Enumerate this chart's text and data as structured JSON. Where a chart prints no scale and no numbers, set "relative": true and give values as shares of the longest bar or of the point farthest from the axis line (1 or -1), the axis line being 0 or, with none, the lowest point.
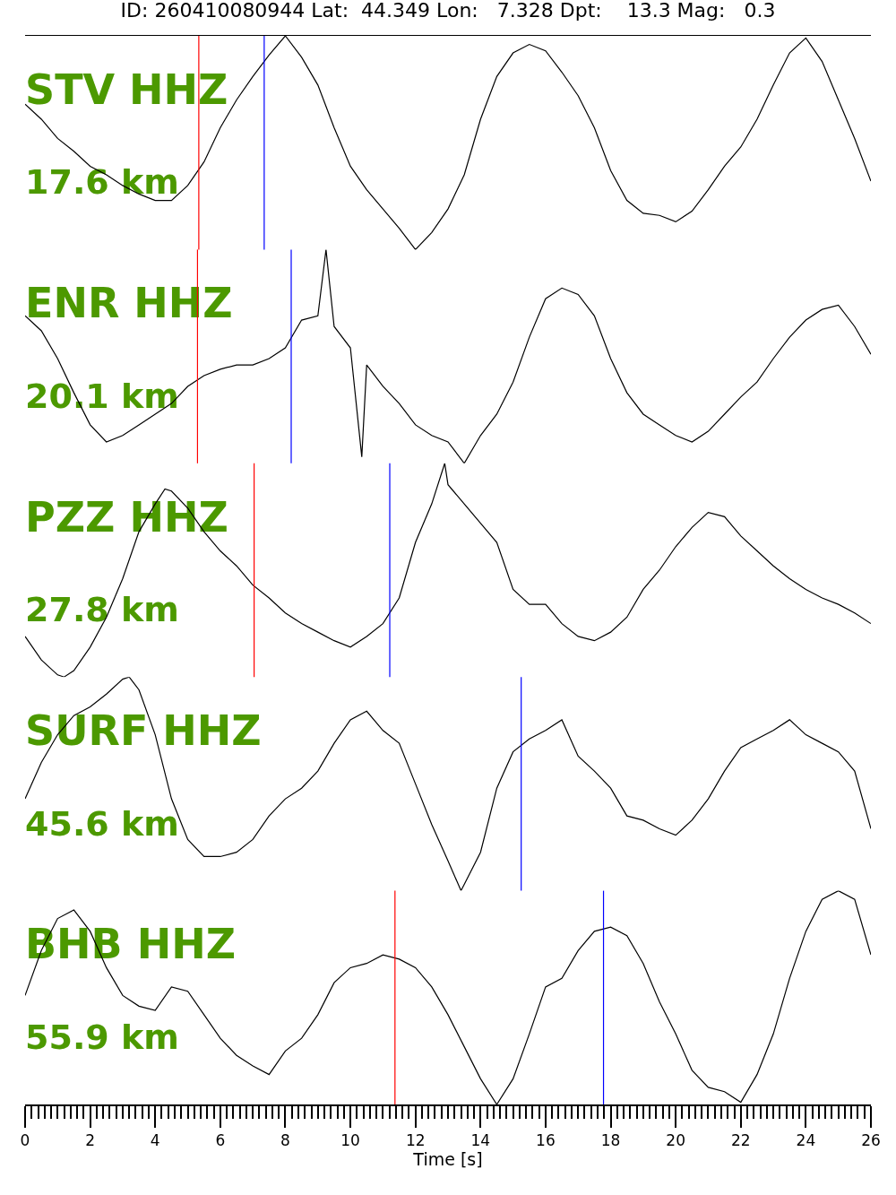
{
  "chart_data": [
    {
      "type": "line",
      "title": "ID: 260410080944 Lat:  44.349 Lon:   7.328 Dpt:    13.3 Mag:   0.3",
      "relative": true,
      "tick_labels": false,
      "xlim": [
        0,
        26
      ],
      "marker": "none",
      "line_style": "solid",
      "annotations": [
        "STV HHZ",
        "17.6 km"
      ],
      "series": [
        {
          "color": "#000000",
          "x": [
            0,
            0.5,
            1,
            1.5,
            2,
            2.5,
            3,
            3.5,
            4,
            4.5,
            5,
            5.5,
            6,
            6.5,
            7,
            7.5,
            8,
            8.5,
            9,
            9.5,
            10,
            10.5,
            11,
            11.5,
            12,
            12.5,
            13,
            13.5,
            14,
            14.5,
            15,
            15.5,
            16,
            16.5,
            17,
            17.5,
            18,
            18.5,
            19,
            19.5,
            20,
            20.5,
            21,
            21.5,
            22,
            22.5,
            23,
            23.5,
            24,
            24.5,
            25,
            25.5,
            26
          ],
          "values": [
            0.68,
            0.61,
            0.52,
            0.46,
            0.39,
            0.35,
            0.3,
            0.26,
            0.23,
            0.23,
            0.3,
            0.41,
            0.57,
            0.7,
            0.81,
            0.91,
            1.0,
            0.9,
            0.77,
            0.57,
            0.39,
            0.28,
            0.19,
            0.1,
            0.0,
            0.08,
            0.19,
            0.35,
            0.61,
            0.81,
            0.92,
            0.96,
            0.93,
            0.83,
            0.72,
            0.57,
            0.37,
            0.23,
            0.17,
            0.16,
            0.13,
            0.18,
            0.28,
            0.39,
            0.48,
            0.61,
            0.77,
            0.92,
            0.99,
            0.88,
            0.7,
            0.52,
            0.32
          ]
        }
      ],
      "ref_lines": [
        {
          "axis": "x",
          "value": 5.34,
          "color": "#ff0000"
        },
        {
          "axis": "x",
          "value": 7.35,
          "color": "#0000ff"
        }
      ]
    },
    {
      "type": "line",
      "relative": true,
      "tick_labels": false,
      "xlim": [
        0,
        26
      ],
      "marker": "none",
      "line_style": "solid",
      "annotations": [
        "ENR HHZ",
        "20.1 km"
      ],
      "series": [
        {
          "color": "#000000",
          "x": [
            0,
            0.5,
            1,
            1.5,
            2,
            2.5,
            3,
            3.5,
            4,
            4.5,
            5,
            5.5,
            6,
            6.5,
            7,
            7.5,
            8,
            8.5,
            9,
            9.25,
            9.5,
            10,
            10.35,
            10.5,
            11,
            11.5,
            12,
            12.5,
            13,
            13.5,
            14,
            14.5,
            15,
            15.5,
            16,
            16.5,
            17,
            17.5,
            18,
            18.5,
            19,
            19.5,
            20,
            20.5,
            21,
            21.5,
            22,
            22.5,
            23,
            23.5,
            24,
            24.5,
            25,
            25.5,
            26
          ],
          "values": [
            0.69,
            0.62,
            0.49,
            0.33,
            0.18,
            0.1,
            0.13,
            0.18,
            0.23,
            0.28,
            0.36,
            0.41,
            0.44,
            0.46,
            0.46,
            0.49,
            0.54,
            0.67,
            0.69,
            1.0,
            0.64,
            0.54,
            0.03,
            0.46,
            0.36,
            0.28,
            0.18,
            0.13,
            0.1,
            0.0,
            0.13,
            0.23,
            0.38,
            0.59,
            0.77,
            0.82,
            0.79,
            0.69,
            0.49,
            0.33,
            0.23,
            0.18,
            0.13,
            0.1,
            0.15,
            0.23,
            0.31,
            0.38,
            0.49,
            0.59,
            0.67,
            0.72,
            0.74,
            0.64,
            0.51
          ]
        }
      ],
      "ref_lines": [
        {
          "axis": "x",
          "value": 5.3,
          "color": "#ff0000"
        },
        {
          "axis": "x",
          "value": 8.18,
          "color": "#0000ff"
        }
      ]
    },
    {
      "type": "line",
      "relative": true,
      "tick_labels": false,
      "xlim": [
        0,
        26
      ],
      "marker": "none",
      "line_style": "solid",
      "annotations": [
        "PZZ HHZ",
        "27.8 km"
      ],
      "series": [
        {
          "color": "#000000",
          "x": [
            0,
            0.5,
            1,
            1.2,
            1.5,
            2,
            2.5,
            3,
            3.5,
            4,
            4.3,
            4.5,
            5,
            5.5,
            6,
            6.5,
            7,
            7.5,
            8,
            8.5,
            9,
            9.5,
            10,
            10.5,
            11,
            11.5,
            12,
            12.5,
            12.9,
            13,
            13.5,
            14,
            14.5,
            15,
            15.5,
            16,
            16.5,
            17,
            17.5,
            18,
            18.5,
            19,
            19.5,
            20,
            20.5,
            21,
            21.5,
            22,
            22.5,
            23,
            23.5,
            24,
            24.5,
            25,
            25.5,
            26
          ],
          "values": [
            0.19,
            0.08,
            0.01,
            0.0,
            0.03,
            0.14,
            0.28,
            0.46,
            0.68,
            0.81,
            0.88,
            0.87,
            0.79,
            0.68,
            0.59,
            0.52,
            0.43,
            0.37,
            0.3,
            0.25,
            0.21,
            0.17,
            0.14,
            0.19,
            0.25,
            0.37,
            0.63,
            0.81,
            1.0,
            0.9,
            0.81,
            0.72,
            0.63,
            0.41,
            0.34,
            0.34,
            0.25,
            0.19,
            0.17,
            0.21,
            0.28,
            0.41,
            0.5,
            0.61,
            0.7,
            0.77,
            0.75,
            0.66,
            0.59,
            0.52,
            0.46,
            0.41,
            0.37,
            0.34,
            0.3,
            0.25
          ]
        }
      ],
      "ref_lines": [
        {
          "axis": "x",
          "value": 7.04,
          "color": "#ff0000"
        },
        {
          "axis": "x",
          "value": 11.21,
          "color": "#0000ff"
        }
      ]
    },
    {
      "type": "line",
      "relative": true,
      "tick_labels": false,
      "xlim": [
        0,
        26
      ],
      "marker": "none",
      "line_style": "solid",
      "annotations": [
        "SURF HHZ",
        "45.6 km"
      ],
      "series": [
        {
          "color": "#000000",
          "x": [
            0,
            0.5,
            1,
            1.5,
            2,
            2.5,
            3,
            3.2,
            3.5,
            4,
            4.5,
            5,
            5.5,
            6,
            6.5,
            7,
            7.5,
            8,
            8.5,
            9,
            9.5,
            10,
            10.5,
            11,
            11.5,
            12,
            12.5,
            13,
            13.4,
            13.5,
            14,
            14.5,
            15,
            15.5,
            16,
            16.5,
            17,
            17.5,
            18,
            18.5,
            19,
            19.5,
            20,
            20.5,
            21,
            21.5,
            22,
            22.5,
            23,
            23.5,
            24,
            24.5,
            25,
            25.5,
            26
          ],
          "values": [
            0.43,
            0.6,
            0.73,
            0.82,
            0.86,
            0.92,
            0.99,
            1.0,
            0.94,
            0.73,
            0.43,
            0.24,
            0.16,
            0.16,
            0.18,
            0.24,
            0.35,
            0.43,
            0.48,
            0.56,
            0.69,
            0.8,
            0.84,
            0.75,
            0.69,
            0.5,
            0.31,
            0.14,
            0.0,
            0.03,
            0.18,
            0.48,
            0.65,
            0.71,
            0.75,
            0.8,
            0.63,
            0.56,
            0.48,
            0.35,
            0.33,
            0.29,
            0.26,
            0.33,
            0.43,
            0.56,
            0.67,
            0.71,
            0.75,
            0.8,
            0.73,
            0.69,
            0.65,
            0.56,
            0.29
          ]
        }
      ],
      "ref_lines": [
        {
          "axis": "x",
          "value": 15.25,
          "color": "#0000ff"
        }
      ]
    },
    {
      "type": "line",
      "relative": true,
      "tick_labels": "x",
      "xlim": [
        0,
        26
      ],
      "marker": "none",
      "line_style": "solid",
      "xlabel": "Time [s]",
      "annotations": [
        "BHB HHZ",
        "55.9 km"
      ],
      "xticks": [
        0,
        2,
        4,
        6,
        8,
        10,
        12,
        14,
        16,
        18,
        20,
        22,
        24,
        26,
        {
          "value": 0.2,
          "label": null
        },
        {
          "value": 0.4,
          "label": null
        },
        {
          "value": 0.6,
          "label": null
        },
        {
          "value": 0.8,
          "label": null
        },
        {
          "value": 1,
          "label": null
        },
        {
          "value": 1.2,
          "label": null
        },
        {
          "value": 1.4,
          "label": null
        },
        {
          "value": 1.6,
          "label": null
        },
        {
          "value": 1.8,
          "label": null
        },
        {
          "value": 2.2,
          "label": null
        },
        {
          "value": 2.4,
          "label": null
        },
        {
          "value": 2.6,
          "label": null
        },
        {
          "value": 2.8,
          "label": null
        },
        {
          "value": 3,
          "label": null
        },
        {
          "value": 3.2,
          "label": null
        },
        {
          "value": 3.4,
          "label": null
        },
        {
          "value": 3.6,
          "label": null
        },
        {
          "value": 3.8,
          "label": null
        },
        {
          "value": 4.2,
          "label": null
        },
        {
          "value": 4.4,
          "label": null
        },
        {
          "value": 4.6,
          "label": null
        },
        {
          "value": 4.8,
          "label": null
        },
        {
          "value": 5,
          "label": null
        },
        {
          "value": 5.2,
          "label": null
        },
        {
          "value": 5.4,
          "label": null
        },
        {
          "value": 5.6,
          "label": null
        },
        {
          "value": 5.8,
          "label": null
        },
        {
          "value": 6.2,
          "label": null
        },
        {
          "value": 6.4,
          "label": null
        },
        {
          "value": 6.6,
          "label": null
        },
        {
          "value": 6.8,
          "label": null
        },
        {
          "value": 7,
          "label": null
        },
        {
          "value": 7.2,
          "label": null
        },
        {
          "value": 7.4,
          "label": null
        },
        {
          "value": 7.6,
          "label": null
        },
        {
          "value": 7.8,
          "label": null
        },
        {
          "value": 8.2,
          "label": null
        },
        {
          "value": 8.4,
          "label": null
        },
        {
          "value": 8.6,
          "label": null
        },
        {
          "value": 8.8,
          "label": null
        },
        {
          "value": 9,
          "label": null
        },
        {
          "value": 9.2,
          "label": null
        },
        {
          "value": 9.4,
          "label": null
        },
        {
          "value": 9.6,
          "label": null
        },
        {
          "value": 9.8,
          "label": null
        },
        {
          "value": 10.2,
          "label": null
        },
        {
          "value": 10.4,
          "label": null
        },
        {
          "value": 10.6,
          "label": null
        },
        {
          "value": 10.8,
          "label": null
        },
        {
          "value": 11,
          "label": null
        },
        {
          "value": 11.2,
          "label": null
        },
        {
          "value": 11.4,
          "label": null
        },
        {
          "value": 11.6,
          "label": null
        },
        {
          "value": 11.8,
          "label": null
        },
        {
          "value": 12.2,
          "label": null
        },
        {
          "value": 12.4,
          "label": null
        },
        {
          "value": 12.6,
          "label": null
        },
        {
          "value": 12.8,
          "label": null
        },
        {
          "value": 13,
          "label": null
        },
        {
          "value": 13.2,
          "label": null
        },
        {
          "value": 13.4,
          "label": null
        },
        {
          "value": 13.6,
          "label": null
        },
        {
          "value": 13.8,
          "label": null
        },
        {
          "value": 14.2,
          "label": null
        },
        {
          "value": 14.4,
          "label": null
        },
        {
          "value": 14.6,
          "label": null
        },
        {
          "value": 14.8,
          "label": null
        },
        {
          "value": 15,
          "label": null
        },
        {
          "value": 15.2,
          "label": null
        },
        {
          "value": 15.4,
          "label": null
        },
        {
          "value": 15.6,
          "label": null
        },
        {
          "value": 15.8,
          "label": null
        },
        {
          "value": 16.2,
          "label": null
        },
        {
          "value": 16.4,
          "label": null
        },
        {
          "value": 16.6,
          "label": null
        },
        {
          "value": 16.8,
          "label": null
        },
        {
          "value": 17,
          "label": null
        },
        {
          "value": 17.2,
          "label": null
        },
        {
          "value": 17.4,
          "label": null
        },
        {
          "value": 17.6,
          "label": null
        },
        {
          "value": 17.8,
          "label": null
        },
        {
          "value": 18.2,
          "label": null
        },
        {
          "value": 18.4,
          "label": null
        },
        {
          "value": 18.6,
          "label": null
        },
        {
          "value": 18.8,
          "label": null
        },
        {
          "value": 19,
          "label": null
        },
        {
          "value": 19.2,
          "label": null
        },
        {
          "value": 19.4,
          "label": null
        },
        {
          "value": 19.6,
          "label": null
        },
        {
          "value": 19.8,
          "label": null
        },
        {
          "value": 20.2,
          "label": null
        },
        {
          "value": 20.4,
          "label": null
        },
        {
          "value": 20.6,
          "label": null
        },
        {
          "value": 20.8,
          "label": null
        },
        {
          "value": 21,
          "label": null
        },
        {
          "value": 21.2,
          "label": null
        },
        {
          "value": 21.4,
          "label": null
        },
        {
          "value": 21.6,
          "label": null
        },
        {
          "value": 21.8,
          "label": null
        },
        {
          "value": 22.2,
          "label": null
        },
        {
          "value": 22.4,
          "label": null
        },
        {
          "value": 22.6,
          "label": null
        },
        {
          "value": 22.8,
          "label": null
        },
        {
          "value": 23,
          "label": null
        },
        {
          "value": 23.2,
          "label": null
        },
        {
          "value": 23.4,
          "label": null
        },
        {
          "value": 23.6,
          "label": null
        },
        {
          "value": 23.8,
          "label": null
        },
        {
          "value": 24.2,
          "label": null
        },
        {
          "value": 24.4,
          "label": null
        },
        {
          "value": 24.6,
          "label": null
        },
        {
          "value": 24.8,
          "label": null
        },
        {
          "value": 25,
          "label": null
        },
        {
          "value": 25.2,
          "label": null
        },
        {
          "value": 25.4,
          "label": null
        },
        {
          "value": 25.6,
          "label": null
        },
        {
          "value": 25.8,
          "label": null
        }
      ],
      "series": [
        {
          "color": "#000000",
          "x": [
            0,
            0.5,
            1,
            1.5,
            2,
            2.5,
            3,
            3.5,
            4,
            4.5,
            5,
            5.5,
            6,
            6.5,
            7,
            7.5,
            8,
            8.5,
            9,
            9.5,
            10,
            10.5,
            11,
            11.5,
            12,
            12.5,
            13,
            13.5,
            14,
            14.5,
            15,
            15.5,
            16,
            16.5,
            17,
            17.5,
            18,
            18.5,
            19,
            19.5,
            20,
            20.5,
            21,
            21.5,
            22,
            22.5,
            23,
            23.5,
            24,
            24.5,
            25,
            25.5,
            26
          ],
          "values": [
            0.51,
            0.72,
            0.87,
            0.91,
            0.81,
            0.64,
            0.51,
            0.46,
            0.44,
            0.55,
            0.53,
            0.42,
            0.31,
            0.23,
            0.18,
            0.14,
            0.25,
            0.31,
            0.42,
            0.57,
            0.64,
            0.66,
            0.7,
            0.68,
            0.64,
            0.55,
            0.42,
            0.27,
            0.12,
            0.0,
            0.12,
            0.33,
            0.55,
            0.59,
            0.72,
            0.81,
            0.83,
            0.79,
            0.66,
            0.48,
            0.33,
            0.16,
            0.08,
            0.06,
            0.01,
            0.14,
            0.33,
            0.59,
            0.81,
            0.96,
            1.0,
            0.96,
            0.7
          ]
        }
      ],
      "ref_lines": [
        {
          "axis": "x",
          "value": 11.37,
          "color": "#ff0000"
        },
        {
          "axis": "x",
          "value": 17.78,
          "color": "#0000ff"
        }
      ]
    }
  ]
}
